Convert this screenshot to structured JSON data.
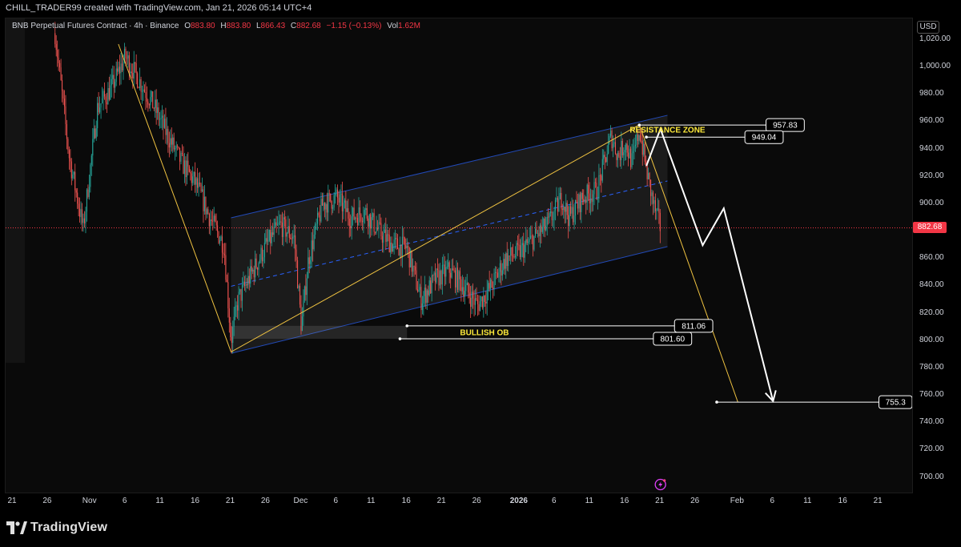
{
  "header": {
    "creator_text": "CHILL_TRADER99 created with TradingView.com, Jan 21, 2026 05:14 UTC+4"
  },
  "legend": {
    "symbol": "BNB Perpetual Futures Contract · 4h · Binance",
    "open_label": "O",
    "open": "883.80",
    "high_label": "H",
    "high": "883.80",
    "low_label": "L",
    "low": "866.43",
    "close_label": "C",
    "close": "882.68",
    "change": "−1.15 (−0.13%)",
    "vol_label": "Vol",
    "vol": "1.62M"
  },
  "price_axis": {
    "currency": "USD",
    "ticks": [
      "1,020.00",
      "1,000.00",
      "980.00",
      "960.00",
      "940.00",
      "920.00",
      "900.00",
      "880.00",
      "860.00",
      "840.00",
      "820.00",
      "800.00",
      "780.00",
      "760.00",
      "740.00",
      "720.00",
      "700.00"
    ],
    "last_price": "882.68"
  },
  "time_axis": {
    "ticks": [
      {
        "label": "21",
        "bold": false
      },
      {
        "label": "26",
        "bold": false
      },
      {
        "label": "Nov",
        "bold": false
      },
      {
        "label": "6",
        "bold": false
      },
      {
        "label": "11",
        "bold": false
      },
      {
        "label": "16",
        "bold": false
      },
      {
        "label": "21",
        "bold": false
      },
      {
        "label": "26",
        "bold": false
      },
      {
        "label": "Dec",
        "bold": false
      },
      {
        "label": "6",
        "bold": false
      },
      {
        "label": "11",
        "bold": false
      },
      {
        "label": "16",
        "bold": false
      },
      {
        "label": "21",
        "bold": false
      },
      {
        "label": "26",
        "bold": false
      },
      {
        "label": "2026",
        "bold": true
      },
      {
        "label": "6",
        "bold": false
      },
      {
        "label": "11",
        "bold": false
      },
      {
        "label": "16",
        "bold": false
      },
      {
        "label": "21",
        "bold": false
      },
      {
        "label": "26",
        "bold": false
      },
      {
        "label": "Feb",
        "bold": false
      },
      {
        "label": "6",
        "bold": false
      },
      {
        "label": "11",
        "bold": false
      },
      {
        "label": "16",
        "bold": false
      },
      {
        "label": "21",
        "bold": false
      }
    ]
  },
  "annotations": {
    "resistance_label": "RESISTANCE ZONE",
    "bullish_label": "BULLISH OB",
    "levels": [
      "957.83",
      "949.04",
      "811.06",
      "801.60",
      "755.3"
    ]
  },
  "colors": {
    "up": "#26a69a",
    "down": "#ef5350",
    "channel": "#2962ff",
    "zone_text": "#ffeb3b",
    "trend": "#f0c341",
    "last_price": "#f23645"
  },
  "footer": {
    "brand": "TradingView"
  },
  "chart_data": {
    "type": "candlestick",
    "symbol": "BNB Perpetual Futures Contract",
    "interval": "4h",
    "y_unit": "USD",
    "ylim": [
      690,
      1030
    ],
    "x_range": [
      "2025-10-20",
      "2026-02-23"
    ],
    "last_price": 882.68,
    "ohlc_last": {
      "open": 883.8,
      "high": 883.8,
      "low": 866.43,
      "close": 882.68
    },
    "price_path": [
      {
        "date": "2025-10-27",
        "price": 1025
      },
      {
        "date": "2025-10-29",
        "price": 935
      },
      {
        "date": "2025-10-31",
        "price": 882
      },
      {
        "date": "2025-11-02",
        "price": 970
      },
      {
        "date": "2025-11-04",
        "price": 985
      },
      {
        "date": "2025-11-06",
        "price": 1008
      },
      {
        "date": "2025-11-08",
        "price": 990
      },
      {
        "date": "2025-11-10",
        "price": 972
      },
      {
        "date": "2025-11-12",
        "price": 950
      },
      {
        "date": "2025-11-14",
        "price": 930
      },
      {
        "date": "2025-11-16",
        "price": 915
      },
      {
        "date": "2025-11-18",
        "price": 890
      },
      {
        "date": "2025-11-20",
        "price": 870
      },
      {
        "date": "2025-11-21",
        "price": 800
      },
      {
        "date": "2025-11-22",
        "price": 830
      },
      {
        "date": "2025-11-24",
        "price": 850
      },
      {
        "date": "2025-11-26",
        "price": 870
      },
      {
        "date": "2025-11-28",
        "price": 885
      },
      {
        "date": "2025-11-30",
        "price": 875
      },
      {
        "date": "2025-12-01",
        "price": 810
      },
      {
        "date": "2025-12-02",
        "price": 860
      },
      {
        "date": "2025-12-04",
        "price": 900
      },
      {
        "date": "2025-12-06",
        "price": 905
      },
      {
        "date": "2025-12-08",
        "price": 890
      },
      {
        "date": "2025-12-10",
        "price": 895
      },
      {
        "date": "2025-12-12",
        "price": 880
      },
      {
        "date": "2025-12-14",
        "price": 870
      },
      {
        "date": "2025-12-16",
        "price": 868
      },
      {
        "date": "2025-12-18",
        "price": 830
      },
      {
        "date": "2025-12-20",
        "price": 845
      },
      {
        "date": "2025-12-22",
        "price": 852
      },
      {
        "date": "2025-12-24",
        "price": 840
      },
      {
        "date": "2025-12-26",
        "price": 826
      },
      {
        "date": "2025-12-28",
        "price": 840
      },
      {
        "date": "2025-12-30",
        "price": 860
      },
      {
        "date": "2026-01-01",
        "price": 865
      },
      {
        "date": "2026-01-03",
        "price": 875
      },
      {
        "date": "2026-01-05",
        "price": 885
      },
      {
        "date": "2026-01-07",
        "price": 905
      },
      {
        "date": "2026-01-08",
        "price": 890
      },
      {
        "date": "2026-01-10",
        "price": 905
      },
      {
        "date": "2026-01-12",
        "price": 910
      },
      {
        "date": "2026-01-14",
        "price": 950
      },
      {
        "date": "2026-01-15",
        "price": 935
      },
      {
        "date": "2026-01-16",
        "price": 945
      },
      {
        "date": "2026-01-17",
        "price": 930
      },
      {
        "date": "2026-01-18",
        "price": 955
      },
      {
        "date": "2026-01-19",
        "price": 925
      },
      {
        "date": "2026-01-20",
        "price": 900
      },
      {
        "date": "2026-01-21",
        "price": 882.68
      }
    ],
    "channel": {
      "upper": [
        {
          "date": "2025-11-21",
          "price": 890
        },
        {
          "date": "2026-01-22",
          "price": 965
        }
      ],
      "middle": [
        {
          "date": "2025-11-21",
          "price": 840
        },
        {
          "date": "2026-01-22",
          "price": 917
        }
      ],
      "lower": [
        {
          "date": "2025-11-21",
          "price": 791
        },
        {
          "date": "2026-01-22",
          "price": 869
        }
      ]
    },
    "trend_line": [
      {
        "date": "2025-11-05",
        "price": 1017
      },
      {
        "date": "2025-11-21",
        "price": 792
      },
      {
        "date": "2026-01-18",
        "price": 958
      },
      {
        "date": "2026-02-01",
        "price": 755.3
      }
    ],
    "horizontal_levels": [
      {
        "price": 957.83,
        "label": "957.83"
      },
      {
        "price": 949.04,
        "label": "949.04"
      },
      {
        "price": 811.06,
        "label": "811.06"
      },
      {
        "price": 801.6,
        "label": "801.60"
      },
      {
        "price": 755.3,
        "label": "755.3"
      }
    ],
    "zones": [
      {
        "name": "RESISTANCE ZONE",
        "from": 949.04,
        "to": 957.83
      },
      {
        "name": "BULLISH OB",
        "from": 801.6,
        "to": 811.06
      }
    ],
    "projection": [
      {
        "date": "2026-01-19",
        "price": 928
      },
      {
        "date": "2026-01-21",
        "price": 955
      },
      {
        "date": "2026-01-27",
        "price": 870
      },
      {
        "date": "2026-01-30",
        "price": 897
      },
      {
        "date": "2026-02-06",
        "price": 756
      }
    ],
    "time_ticks": [
      "21",
      "26",
      "Nov",
      "6",
      "11",
      "16",
      "21",
      "26",
      "Dec",
      "6",
      "11",
      "16",
      "21",
      "26",
      "2026",
      "6",
      "11",
      "16",
      "21",
      "26",
      "Feb",
      "6",
      "11",
      "16",
      "21"
    ]
  }
}
